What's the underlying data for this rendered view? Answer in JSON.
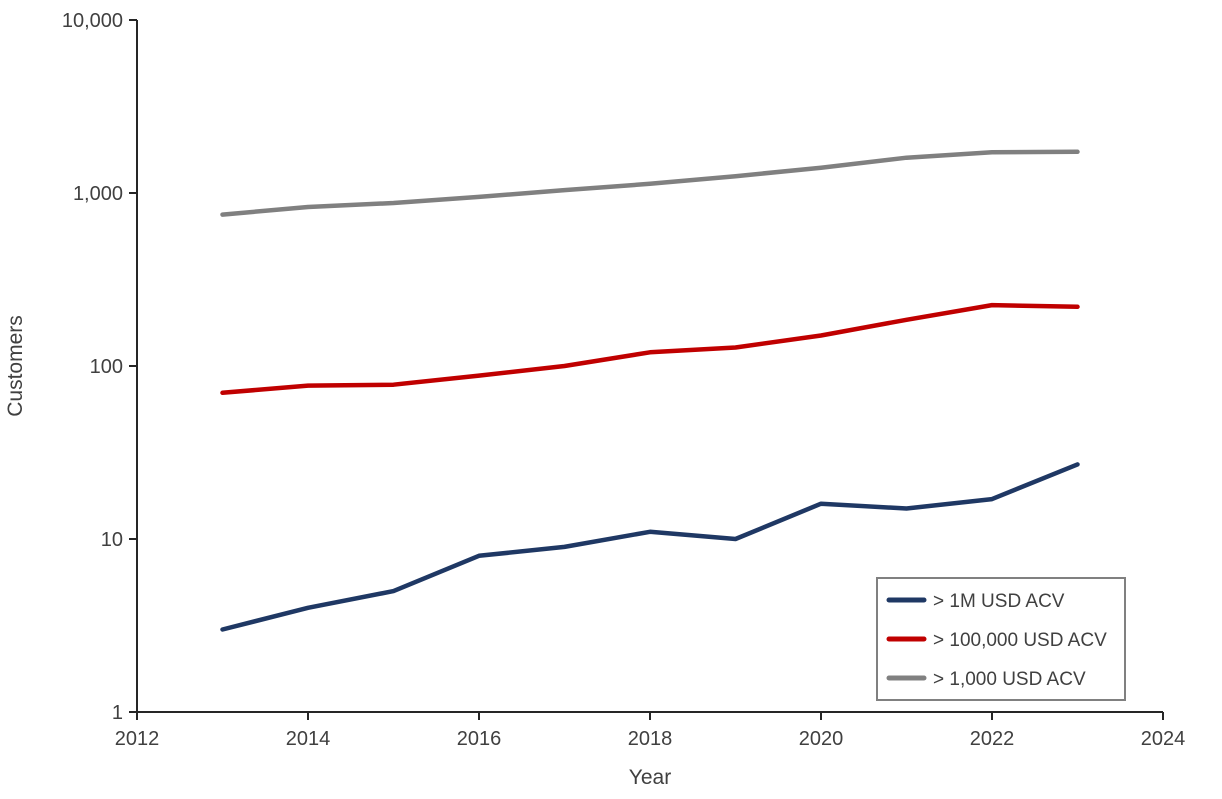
{
  "chart_data": {
    "type": "line",
    "title": "",
    "xlabel": "Year",
    "ylabel": "Customers",
    "grid": false,
    "x_axis": {
      "min": 2012,
      "max": 2024,
      "ticks": [
        2012,
        2014,
        2016,
        2018,
        2020,
        2022,
        2024
      ]
    },
    "y_axis": {
      "scale": "log",
      "min": 1,
      "max": 10000,
      "ticks": [
        {
          "value": 1,
          "label": "1"
        },
        {
          "value": 10,
          "label": "10"
        },
        {
          "value": 100,
          "label": "100"
        },
        {
          "value": 1000,
          "label": "1,000"
        },
        {
          "value": 10000,
          "label": "10,000"
        }
      ]
    },
    "x": [
      2013,
      2014,
      2015,
      2016,
      2017,
      2018,
      2019,
      2020,
      2021,
      2022,
      2023
    ],
    "series": [
      {
        "name": "> 1M USD ACV",
        "color": "#1F3864",
        "values": [
          3,
          4,
          5,
          8,
          9,
          11,
          10,
          16,
          15,
          17,
          27
        ]
      },
      {
        "name": "> 100,000 USD ACV",
        "color": "#C00000",
        "values": [
          70,
          77,
          78,
          88,
          100,
          120,
          128,
          150,
          185,
          225,
          220
        ]
      },
      {
        "name": "> 1,000 USD ACV",
        "color": "#808080",
        "values": [
          750,
          830,
          875,
          950,
          1040,
          1130,
          1250,
          1400,
          1600,
          1720,
          1730
        ]
      }
    ],
    "legend": {
      "position": "bottom-right",
      "border_color": "#808080",
      "entries": [
        "> 1M USD ACV",
        "> 100,000 USD ACV",
        "> 1,000 USD ACV"
      ]
    }
  },
  "colors": {
    "axis": "#262626",
    "tick_text": "#404040",
    "background": "#ffffff"
  }
}
